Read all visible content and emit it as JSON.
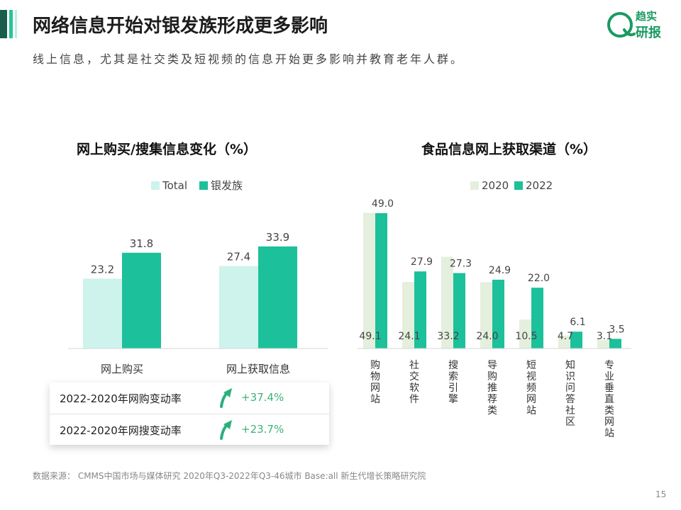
{
  "header": {
    "title": "网络信息开始对银发族形成更多影响",
    "subtitle": "线上信息，尤其是社交类及短视频的信息开始更多影响并教育老年人群。"
  },
  "logo": {
    "line1": "趋实",
    "line2": "研报"
  },
  "colors": {
    "accent_dark": "#1a5d4a",
    "accent": "#1cc09a",
    "accent_light": "#cdf3ec",
    "beige": "#e4efdd",
    "up_green": "#3cb371"
  },
  "chart_data": [
    {
      "type": "bar",
      "title": "网上购买/搜集信息变化（%）",
      "categories": [
        "网上购买",
        "网上获取信息"
      ],
      "series": [
        {
          "name": "Total",
          "values": [
            23.2,
            27.4
          ]
        },
        {
          "name": "银发族",
          "values": [
            31.8,
            33.9
          ]
        }
      ],
      "legend": "top-center",
      "ylim": [
        0,
        40
      ]
    },
    {
      "type": "bar",
      "title": "食品信息网上获取渠道（%）",
      "categories": [
        "购物网站",
        "社交软件",
        "搜索引擎",
        "导购推荐类",
        "短视频网站",
        "知识问答社区",
        "专业垂直类网站"
      ],
      "series": [
        {
          "name": "2020",
          "values": [
            49.1,
            24.1,
            33.2,
            24.0,
            10.5,
            4.7,
            3.1
          ]
        },
        {
          "name": "2022",
          "values": [
            49.0,
            27.9,
            27.3,
            24.9,
            22.0,
            6.1,
            3.5
          ]
        }
      ],
      "legend": "top-center",
      "ylim": [
        0,
        50
      ]
    }
  ],
  "change_table": [
    {
      "label": "2022-2020年网购变动率",
      "value": "+37.4%"
    },
    {
      "label": "2022-2020年网搜变动率",
      "value": "+23.7%"
    }
  ],
  "source": "数据来源： CMMS中国市场与媒体研究 2020年Q3-2022年Q3-46城市 Base:all 新生代增长策略研究院",
  "page_number": "15"
}
